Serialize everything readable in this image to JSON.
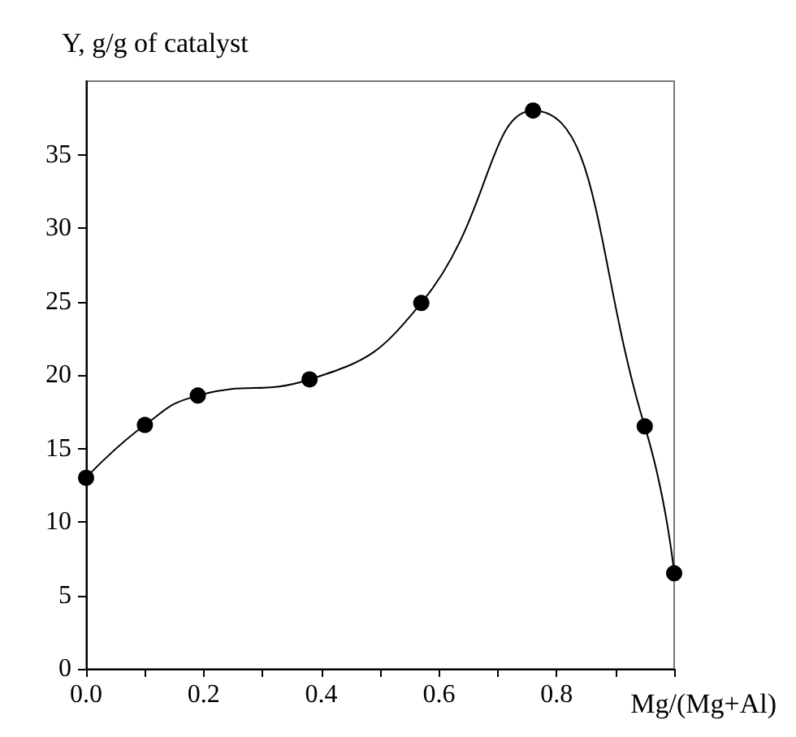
{
  "chart_data": {
    "type": "line",
    "xlabel": "Mg/(Mg+Al)",
    "ylabel": "Y, g/g of catalyst",
    "x": [
      0,
      0.1,
      0.19,
      0.38,
      0.57,
      0.76,
      0.95,
      1.0
    ],
    "series": [
      {
        "color": "#000000",
        "values": [
          13,
          16.6,
          18.6,
          19.7,
          24.9,
          38,
          16.5,
          6.5
        ]
      }
    ],
    "xlim": [
      0,
      1
    ],
    "xticks": [
      "0.0",
      {
        "value": 0.1,
        "label": null
      },
      {
        "value": 0.2,
        "label": "0.2"
      },
      {
        "value": 0.3,
        "label": null
      },
      {
        "value": 0.4,
        "label": "0.4"
      },
      {
        "value": 0.5,
        "label": null
      },
      {
        "value": 0.6,
        "label": "0.6"
      },
      {
        "value": 0.7,
        "label": null
      },
      {
        "value": 0.8,
        "label": "0.8"
      },
      {
        "value": 0.9,
        "label": null
      },
      {
        "value": 1.0,
        "label": null
      }
    ],
    "ylim": [
      0,
      40
    ],
    "yticks": [
      0,
      5,
      10,
      15,
      20,
      25,
      30,
      35
    ],
    "marker": "circle",
    "line_style": "solid"
  }
}
